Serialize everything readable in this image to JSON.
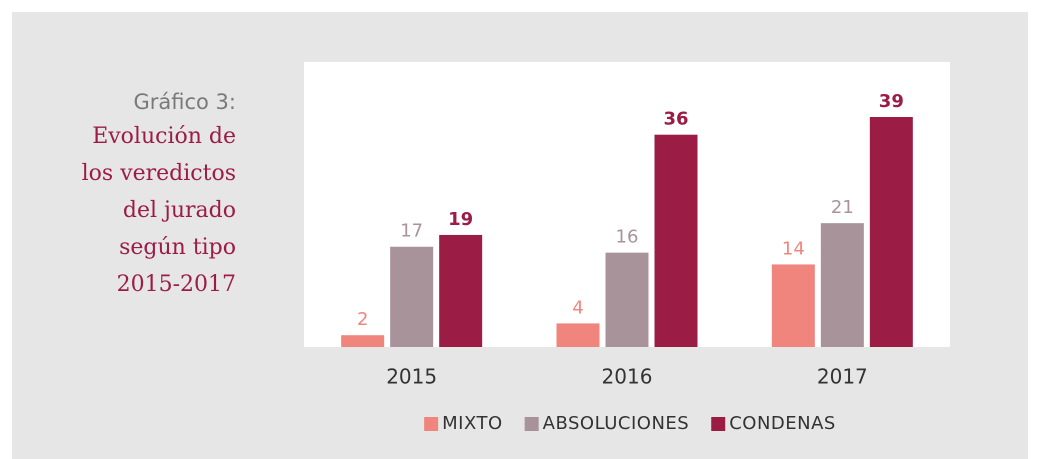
{
  "chart_data": {
    "type": "bar",
    "title": "Gráfico 3:",
    "subtitle_lines": [
      "Evolución de",
      "los veredictos",
      "del jurado",
      "según tipo",
      "2015-2017"
    ],
    "categories": [
      "2015",
      "2016",
      "2017"
    ],
    "series": [
      {
        "name": "MIXTO",
        "color": "#f0857e",
        "values": [
          2,
          4,
          14
        ]
      },
      {
        "name": "ABSOLUCIONES",
        "color": "#a8939b",
        "values": [
          17,
          16,
          21
        ]
      },
      {
        "name": "CONDENAS",
        "color": "#9b1d45",
        "values": [
          19,
          36,
          39
        ]
      }
    ],
    "legend": "bottom"
  }
}
